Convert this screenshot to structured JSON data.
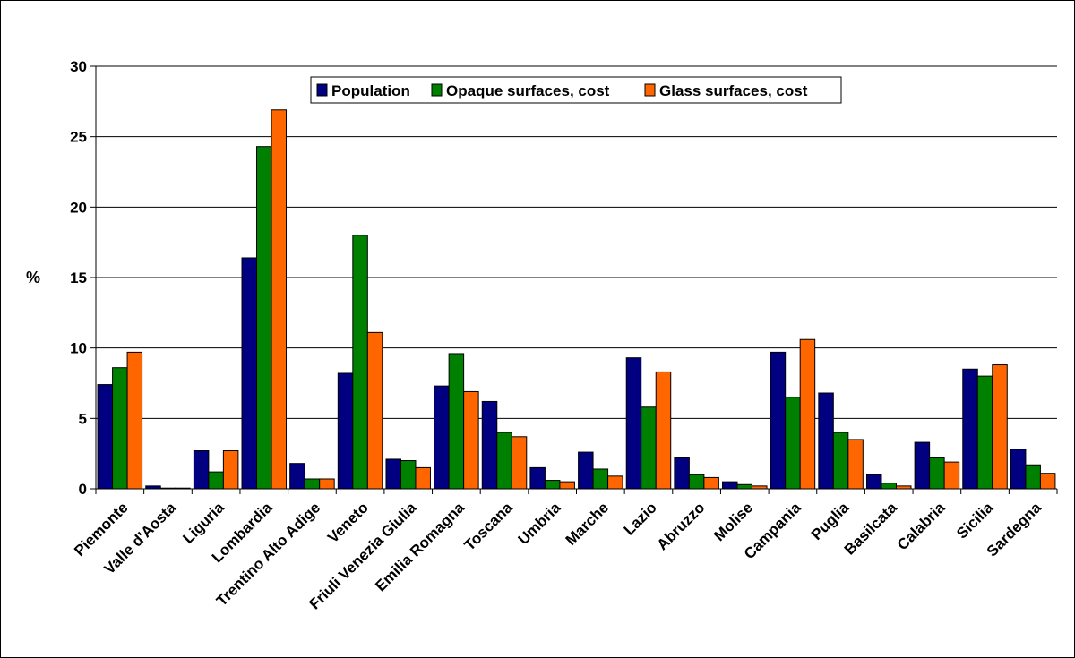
{
  "chart_data": {
    "type": "bar",
    "title": "",
    "xlabel": "",
    "ylabel": "%",
    "ylim": [
      0,
      30
    ],
    "yticks": [
      0,
      5,
      10,
      15,
      20,
      25,
      30
    ],
    "grid": true,
    "legend_position": "top-right",
    "categories": [
      "Piemonte",
      "Valle d'Aosta",
      "Liguria",
      "Lombardia",
      "Trentino Alto Adige",
      "Veneto",
      "Friuli Venezia Giulia",
      "Emilia Romagna",
      "Toscana",
      "Umbria",
      "Marche",
      "Lazio",
      "Abruzzo",
      "Molise",
      "Campania",
      "Puglia",
      "Basilcata",
      "Calabria",
      "Sicilia",
      "Sardegna"
    ],
    "series": [
      {
        "name": "Population",
        "color": "#000080",
        "values": [
          7.4,
          0.2,
          2.7,
          16.4,
          1.8,
          8.2,
          2.1,
          7.3,
          6.2,
          1.5,
          2.6,
          9.3,
          2.2,
          0.5,
          9.7,
          6.8,
          1.0,
          3.3,
          8.5,
          2.8
        ]
      },
      {
        "name": "Opaque surfaces, cost",
        "color": "#008000",
        "values": [
          8.6,
          0.05,
          1.2,
          24.3,
          0.7,
          18.0,
          2.0,
          9.6,
          4.0,
          0.6,
          1.4,
          5.8,
          1.0,
          0.3,
          6.5,
          4.0,
          0.4,
          2.2,
          8.0,
          1.7
        ]
      },
      {
        "name": "Glass surfaces, cost",
        "color": "#FF6600",
        "values": [
          9.7,
          0.05,
          2.7,
          26.9,
          0.7,
          11.1,
          1.5,
          6.9,
          3.7,
          0.5,
          0.9,
          8.3,
          0.8,
          0.2,
          10.6,
          3.5,
          0.2,
          1.9,
          8.8,
          1.1
        ]
      }
    ]
  }
}
